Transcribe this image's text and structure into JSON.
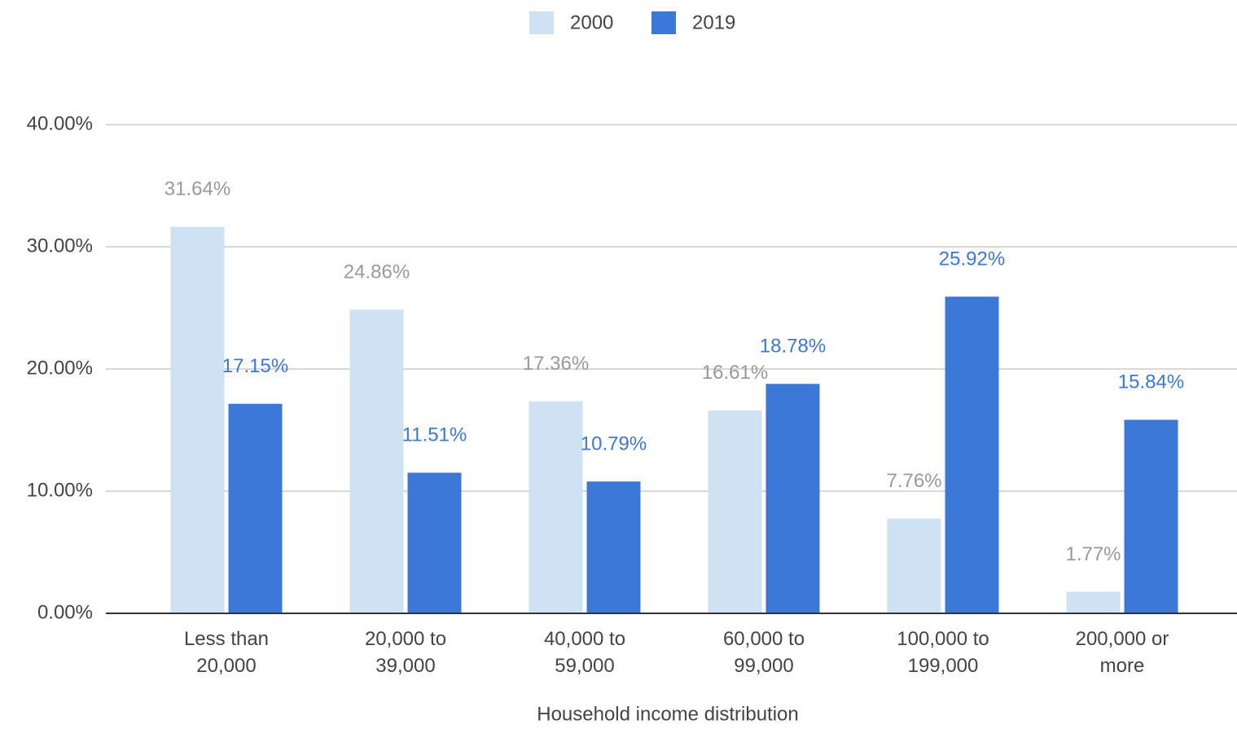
{
  "chart_data": {
    "type": "bar",
    "x_label": "Household income distribution",
    "categories": [
      "Less than 20,000",
      "20,000 to 39,000",
      "40,000 to 59,000",
      "60,000 to 99,000",
      "100,000 to 199,000",
      "200,000 or more"
    ],
    "series": [
      {
        "name": "2000",
        "color": "#cfe2f3",
        "label_color": "#999999",
        "values": [
          31.64,
          24.86,
          17.36,
          16.61,
          7.76,
          1.77
        ],
        "value_labels": [
          "31.64%",
          "24.86%",
          "17.36%",
          "16.61%",
          "7.76%",
          "1.77%"
        ]
      },
      {
        "name": "2019",
        "color": "#3c78d8",
        "label_color": "#3c78d8",
        "values": [
          17.15,
          11.51,
          10.79,
          18.78,
          25.92,
          15.84
        ],
        "value_labels": [
          "17.15%",
          "11.51%",
          "10.79%",
          "18.78%",
          "25.92%",
          "15.84%"
        ]
      }
    ],
    "ylim": [
      0,
      40
    ],
    "yticks": [
      {
        "value": 0,
        "label": "0.00%"
      },
      {
        "value": 10,
        "label": "10.00%"
      },
      {
        "value": 20,
        "label": "20.00%"
      },
      {
        "value": 30,
        "label": "30.00%"
      },
      {
        "value": 40,
        "label": "40.00%"
      }
    ],
    "grid": true,
    "legend": "top"
  }
}
